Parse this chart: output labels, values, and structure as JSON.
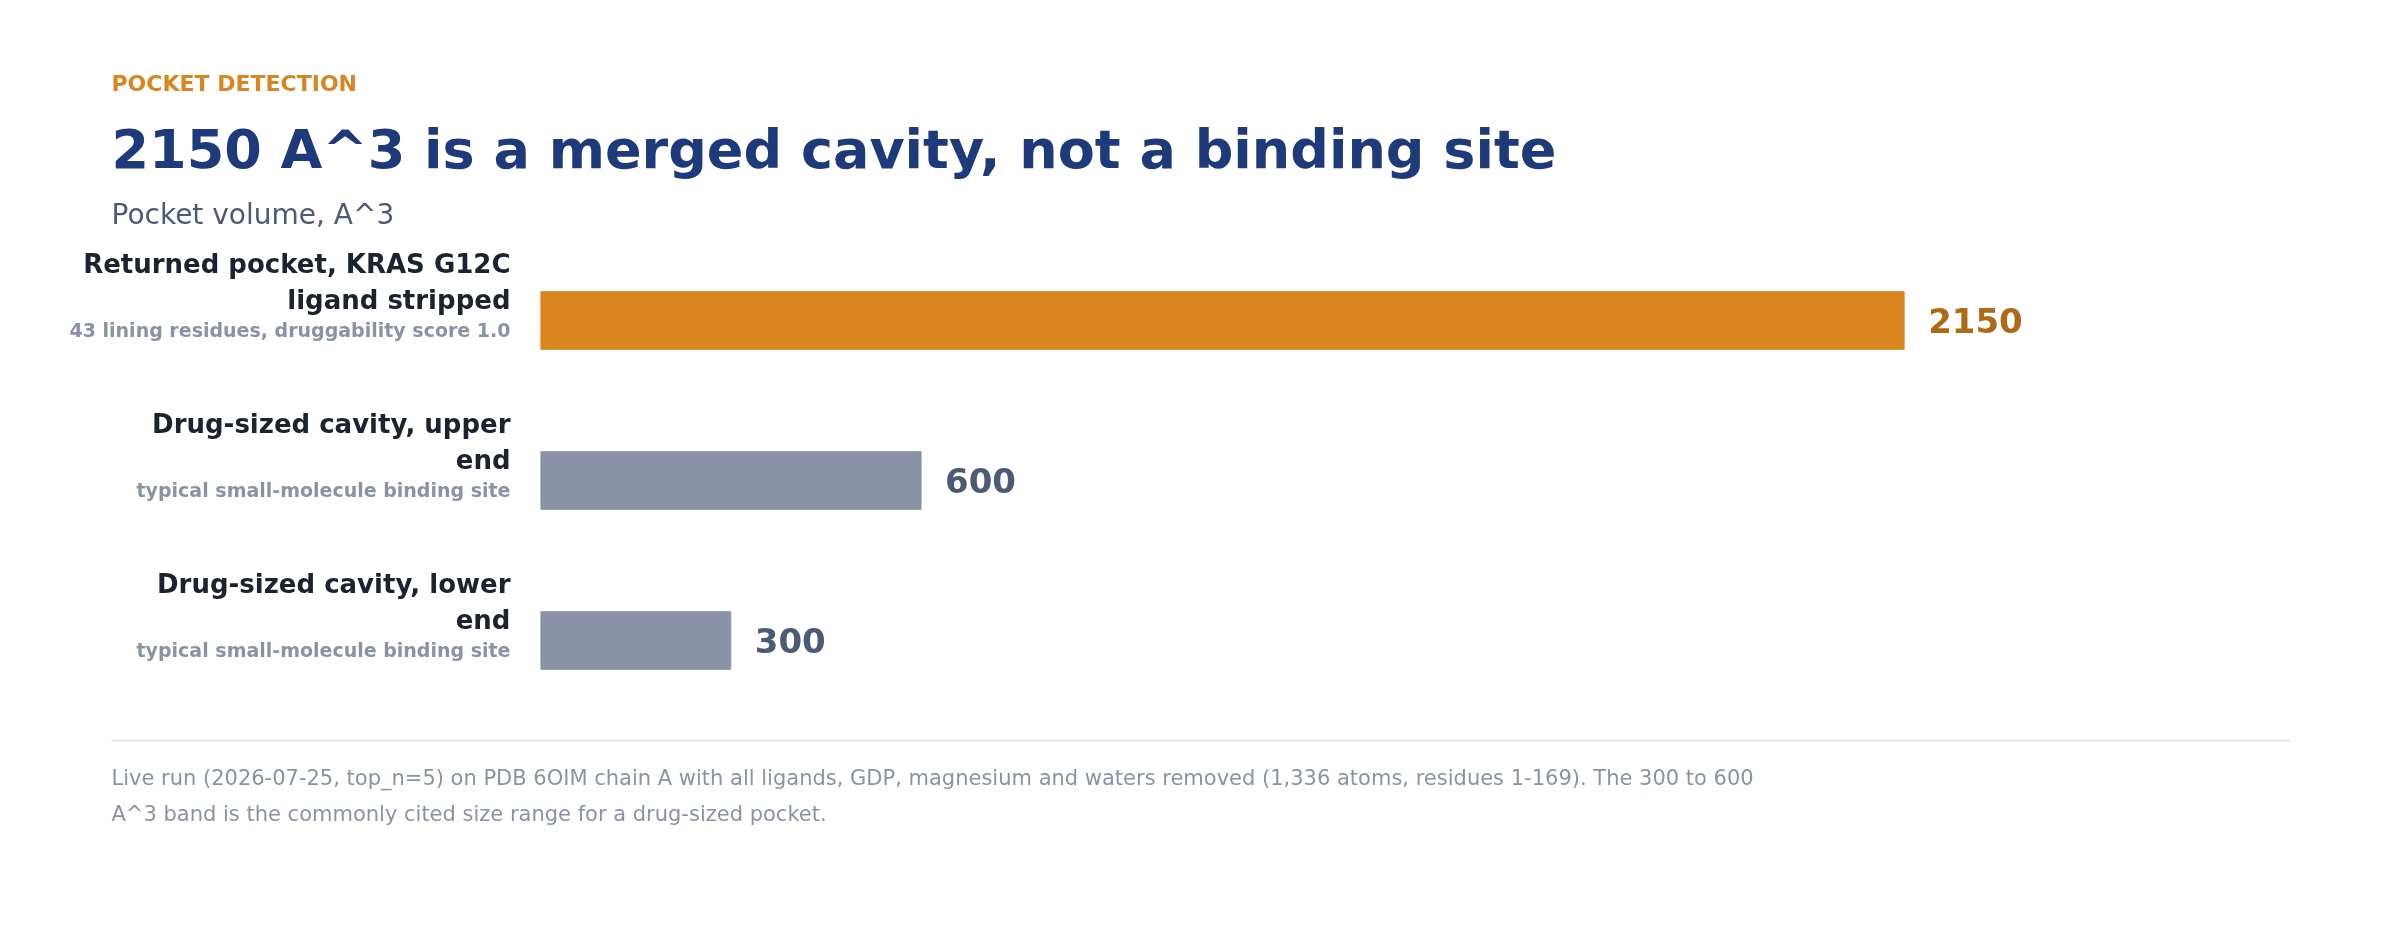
{
  "chart_data": {
    "type": "bar",
    "orientation": "horizontal",
    "title": "2150 A^3 is a merged cavity, not a binding site",
    "subtitle": "Pocket volume, A^3",
    "categories": [
      "Returned pocket, KRAS G12C ligand stripped",
      "Drug-sized cavity, upper end",
      "Drug-sized cavity, lower end"
    ],
    "values": [
      2150,
      600,
      300
    ],
    "colors": [
      "#db8520",
      "#8a93a6",
      "#8a93a6"
    ],
    "data_labels": true,
    "tick_labels": false,
    "annotations": [
      "43 lining residues, druggability score 1.0",
      "typical small-molecule binding site",
      "typical small-molecule binding site",
      "POCKET DETECTION",
      "Live run (2026-07-25, top_n=5) on PDB 6OIM chain A with all ligands, GDP, magnesium and waters removed (1,336 atoms, residues 1-169). The 300 to 600 A^3 band is the commonly cited size range for a drug-sized pocket."
    ]
  }
}
